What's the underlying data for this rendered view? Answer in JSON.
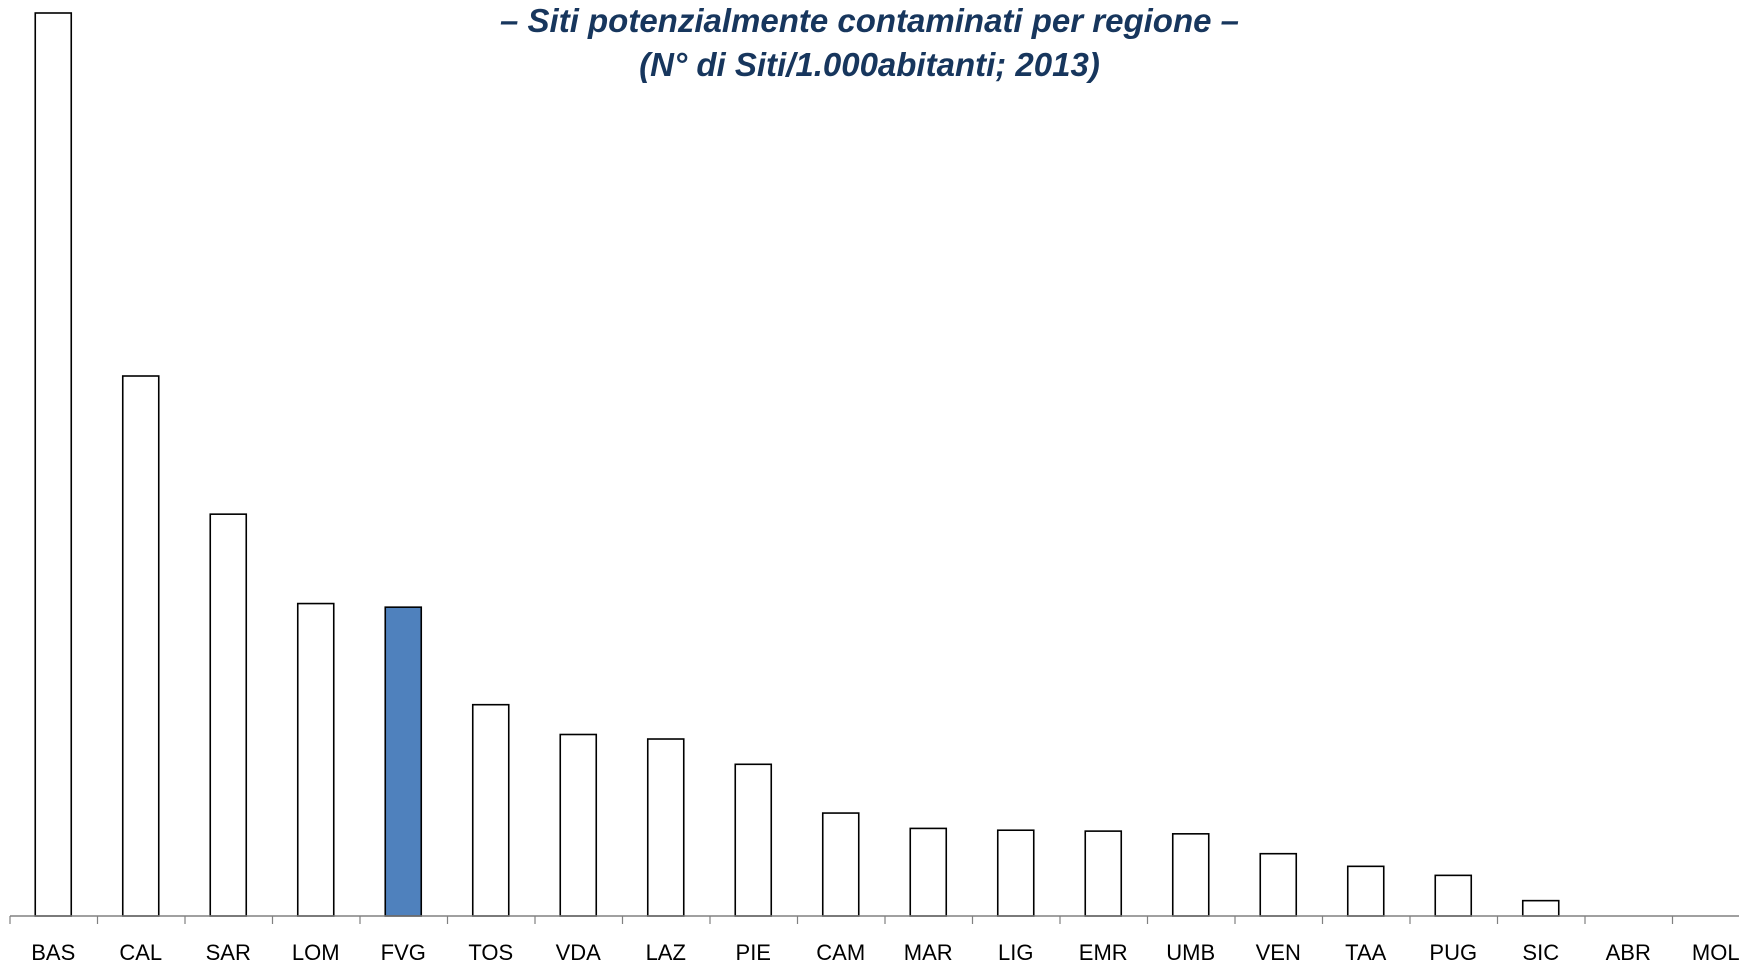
{
  "chart_data": {
    "type": "bar",
    "title": "–  Siti potenzialmente contaminati per regione –",
    "subtitle": "(N° di Siti/1.000abitanti; 2013)",
    "categories": [
      "BAS",
      "CAL",
      "SAR",
      "LOM",
      "FVG",
      "TOS",
      "VDA",
      "LAZ",
      "PIE",
      "CAM",
      "MAR",
      "LIG",
      "EMR",
      "UMB",
      "VEN",
      "TAA",
      "PUG",
      "SIC",
      "ABR",
      "MOL"
    ],
    "values": [
      1.0,
      0.598,
      0.445,
      0.346,
      0.342,
      0.234,
      0.201,
      0.196,
      0.168,
      0.114,
      0.097,
      0.095,
      0.094,
      0.091,
      0.069,
      0.055,
      0.045,
      0.017,
      0.0,
      0.0
    ],
    "highlight_category": "FVG",
    "ylim": [
      0,
      1.0
    ],
    "grid": false,
    "xlabel": "",
    "ylabel": "",
    "colors": {
      "bar_fill": "#ffffff",
      "bar_stroke": "#000000",
      "highlight_fill": "#4f81bd",
      "title": "#17365d",
      "axis": "#808080"
    }
  }
}
